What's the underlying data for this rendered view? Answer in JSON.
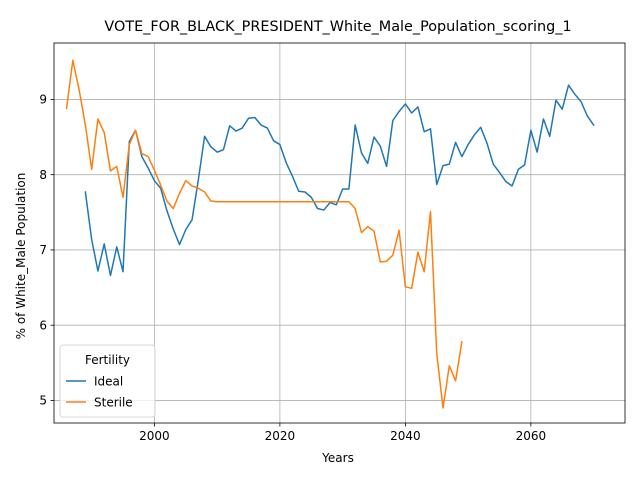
{
  "chart_data": {
    "type": "line",
    "title": "VOTE_FOR_BLACK_PRESIDENT_White_Male_Population_scoring_1",
    "xlabel": "Years",
    "ylabel": "% of White_Male Population",
    "xlim": [
      1984,
      2075
    ],
    "ylim": [
      4.7,
      9.75
    ],
    "x_ticks": [
      2000,
      2020,
      2040,
      2060
    ],
    "y_ticks": [
      5,
      6,
      7,
      8,
      9
    ],
    "grid": true,
    "legend": {
      "title": "Fertility",
      "placement": "lower-left"
    },
    "series": [
      {
        "name": "Ideal",
        "color": "#1f77b4",
        "x": [
          1989,
          1990,
          1991,
          1992,
          1993,
          1994,
          1995,
          1996,
          1997,
          1998,
          1999,
          2000,
          2001,
          2002,
          2003,
          2004,
          2005,
          2006,
          2007,
          2008,
          2009,
          2010,
          2011,
          2012,
          2013,
          2014,
          2015,
          2016,
          2017,
          2018,
          2019,
          2020,
          2021,
          2022,
          2023,
          2024,
          2025,
          2026,
          2027,
          2028,
          2029,
          2030,
          2031,
          2032,
          2033,
          2034,
          2035,
          2036,
          2037,
          2038,
          2039,
          2040,
          2041,
          2042,
          2043,
          2044,
          2045,
          2046,
          2047,
          2048,
          2049,
          2050,
          2051,
          2052,
          2053,
          2054,
          2055,
          2056,
          2057,
          2058,
          2059,
          2060,
          2061,
          2062,
          2063,
          2064,
          2065,
          2066,
          2067,
          2068,
          2069,
          2070
        ],
        "y": [
          7.77,
          7.14,
          6.72,
          7.08,
          6.66,
          7.04,
          6.71,
          8.44,
          8.59,
          8.24,
          8.09,
          7.92,
          7.82,
          7.52,
          7.28,
          7.07,
          7.27,
          7.4,
          7.93,
          8.51,
          8.37,
          8.3,
          8.33,
          8.65,
          8.58,
          8.62,
          8.75,
          8.76,
          8.66,
          8.62,
          8.45,
          8.4,
          8.16,
          7.98,
          7.78,
          7.77,
          7.7,
          7.55,
          7.53,
          7.63,
          7.6,
          7.81,
          7.81,
          8.66,
          8.29,
          8.15,
          8.5,
          8.38,
          8.11,
          8.72,
          8.84,
          8.94,
          8.82,
          8.9,
          8.57,
          8.61,
          7.87,
          8.12,
          8.14,
          8.43,
          8.24,
          8.4,
          8.53,
          8.63,
          8.42,
          8.14,
          8.03,
          7.91,
          7.85,
          8.07,
          8.13,
          8.59,
          8.3,
          8.74,
          8.51,
          8.99,
          8.87,
          9.19,
          9.07,
          8.97,
          8.78,
          8.66
        ]
      },
      {
        "name": "Sterile",
        "color": "#ff7f0e",
        "x": [
          1986,
          1987,
          1988,
          1989,
          1990,
          1991,
          1992,
          1993,
          1994,
          1995,
          1996,
          1997,
          1998,
          1999,
          2000,
          2001,
          2002,
          2003,
          2004,
          2005,
          2006,
          2007,
          2008,
          2009,
          2010,
          2011,
          2012,
          2013,
          2014,
          2015,
          2016,
          2017,
          2018,
          2019,
          2020,
          2021,
          2022,
          2023,
          2024,
          2025,
          2026,
          2027,
          2028,
          2029,
          2030,
          2031,
          2032,
          2033,
          2034,
          2035,
          2036,
          2037,
          2038,
          2039,
          2040,
          2041,
          2042,
          2043,
          2044,
          2045,
          2046,
          2047,
          2048,
          2049
        ],
        "y": [
          8.88,
          9.52,
          9.13,
          8.66,
          8.07,
          8.74,
          8.56,
          8.05,
          8.11,
          7.7,
          8.4,
          8.59,
          8.28,
          8.24,
          8.06,
          7.86,
          7.65,
          7.55,
          7.75,
          7.92,
          7.85,
          7.82,
          7.77,
          7.65,
          7.64,
          7.64,
          7.64,
          7.64,
          7.64,
          7.64,
          7.64,
          7.64,
          7.64,
          7.64,
          7.64,
          7.64,
          7.64,
          7.64,
          7.64,
          7.64,
          7.64,
          7.64,
          7.64,
          7.64,
          7.64,
          7.64,
          7.55,
          7.23,
          7.31,
          7.25,
          6.84,
          6.85,
          6.93,
          7.26,
          6.51,
          6.49,
          6.97,
          6.71,
          7.51,
          5.62,
          4.9,
          5.46,
          5.26,
          5.78
        ]
      }
    ]
  }
}
